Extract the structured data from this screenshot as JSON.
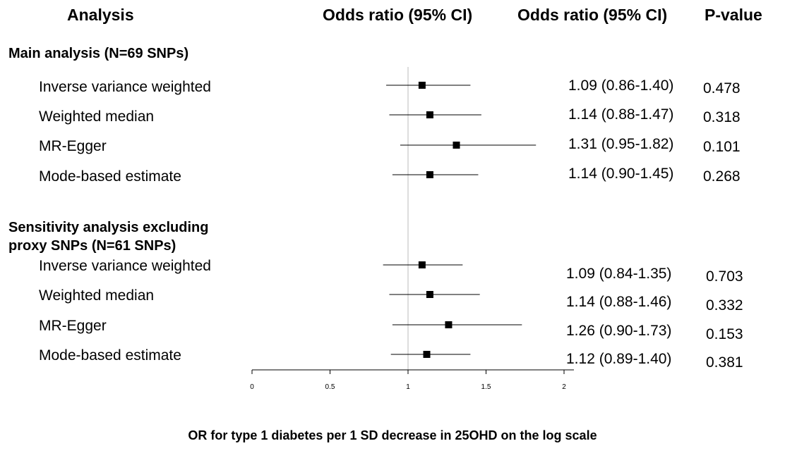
{
  "headers": {
    "analysis": "Analysis",
    "odds_ratio_plot": "Odds ratio (95% CI)",
    "odds_ratio_text": "Odds ratio (95% CI)",
    "p_value": "P-value"
  },
  "sections": [
    {
      "title_lines": [
        "Main analysis (N=69 SNPs)"
      ],
      "rows": [
        {
          "label": "Inverse variance weighted",
          "ci_text": "1.09 (0.86-1.40)",
          "p": "0.478"
        },
        {
          "label": "Weighted median",
          "ci_text": "1.14 (0.88-1.47)",
          "p": "0.318"
        },
        {
          "label": "MR-Egger",
          "ci_text": "1.31 (0.95-1.82)",
          "p": "0.101"
        },
        {
          "label": "Mode-based estimate",
          "ci_text": "1.14 (0.90-1.45)",
          "p": "0.268"
        }
      ]
    },
    {
      "title_lines": [
        "Sensitivity analysis excluding",
        "proxy SNPs (N=61 SNPs)"
      ],
      "rows": [
        {
          "label": "Inverse variance weighted",
          "ci_text": "1.09 (0.84-1.35)",
          "p": "0.703"
        },
        {
          "label": "Weighted median",
          "ci_text": "1.14 (0.88-1.46)",
          "p": "0.332"
        },
        {
          "label": "MR-Egger",
          "ci_text": "1.26 (0.90-1.73)",
          "p": "0.153"
        },
        {
          "label": "Mode-based estimate",
          "ci_text": "1.12 (0.89-1.40)",
          "p": "0.381"
        }
      ]
    }
  ],
  "chart_data": {
    "type": "forest",
    "xlabel": "OR for type 1 diabetes per 1 SD decrease in 25OHD on the log scale",
    "xlim": [
      0,
      2
    ],
    "xticks": [
      "0",
      "0.5",
      "1",
      "1.5",
      "2"
    ],
    "reference_line": 1,
    "series": [
      {
        "name": "Inverse variance weighted",
        "or": 1.09,
        "lower": 0.86,
        "upper": 1.4
      },
      {
        "name": "Weighted median",
        "or": 1.14,
        "lower": 0.88,
        "upper": 1.47
      },
      {
        "name": "MR-Egger",
        "or": 1.31,
        "lower": 0.95,
        "upper": 1.82
      },
      {
        "name": "Mode-based estimate",
        "or": 1.14,
        "lower": 0.9,
        "upper": 1.45
      },
      {
        "name": "Inverse variance weighted",
        "or": 1.09,
        "lower": 0.84,
        "upper": 1.35
      },
      {
        "name": "Weighted median",
        "or": 1.14,
        "lower": 0.88,
        "upper": 1.46
      },
      {
        "name": "MR-Egger",
        "or": 1.26,
        "lower": 0.9,
        "upper": 1.73
      },
      {
        "name": "Mode-based estimate",
        "or": 1.12,
        "lower": 0.89,
        "upper": 1.4
      }
    ],
    "colors": {
      "marker": "#000000",
      "reference": "#bbbbbb"
    }
  }
}
